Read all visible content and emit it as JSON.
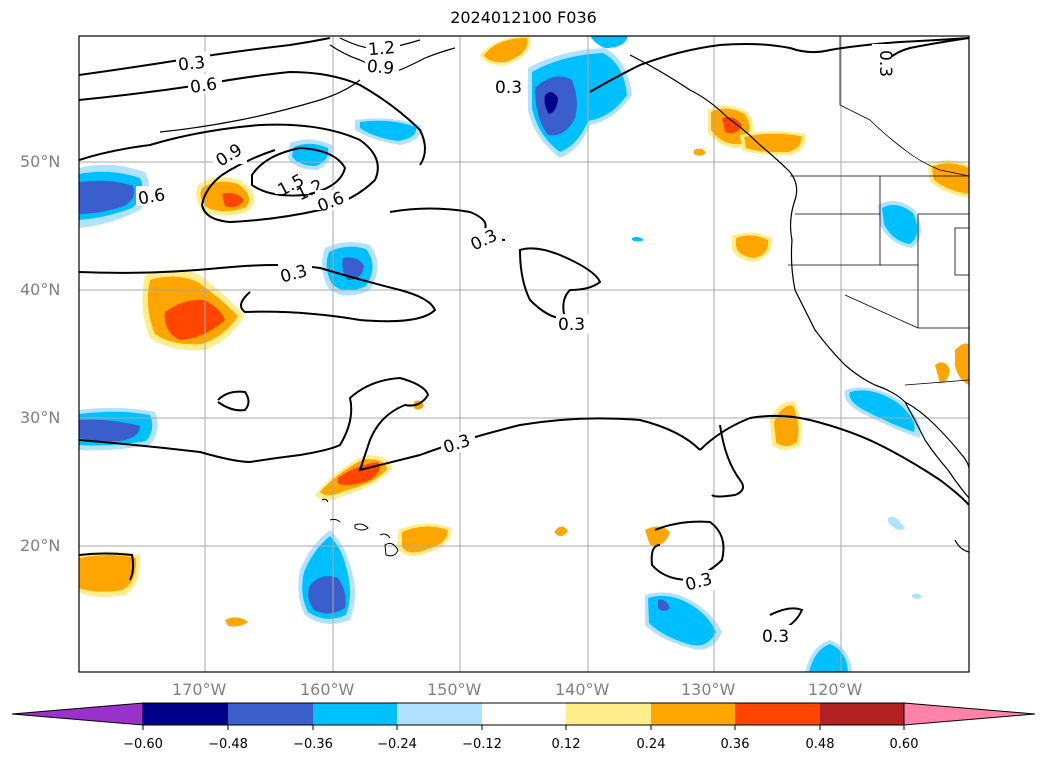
{
  "title": "2024012100 F036",
  "lat_labels": [
    "50°N",
    "40°N",
    "30°N",
    "20°N"
  ],
  "lon_labels": [
    "170°W",
    "160°W",
    "150°W",
    "140°W",
    "130°W",
    "120°W"
  ],
  "contour_labels": {
    "c03a": "0.3",
    "c06a": "0.6",
    "c12a": "1.2",
    "c09a": "0.9",
    "c09b": "0.9",
    "c06b": "0.6",
    "c15": "1.5",
    "c12b": "1.2",
    "c06c": "0.6",
    "c03b": "0.3",
    "c03c": "0.3",
    "c03d": "0.3",
    "c03e": "0.3",
    "c03f": "0.3",
    "c03g": "0.3",
    "c03h": "0.3"
  },
  "colorbar": {
    "ticks": [
      "−0.60",
      "−0.48",
      "−0.36",
      "−0.24",
      "−0.12",
      "0.12",
      "0.24",
      "0.36",
      "0.48",
      "0.60"
    ],
    "colors": [
      "#9932cc",
      "#00008b",
      "#3a5fcd",
      "#00bfff",
      "#b0e2ff",
      "#ffffff",
      "#ffec8b",
      "#ffa500",
      "#ff4500",
      "#b22222",
      "#ff82ab"
    ]
  },
  "colors": {
    "neg_light": "#b0e2ff",
    "neg_mid": "#00bfff",
    "neg_dark": "#3a5fcd",
    "neg_darkest": "#00008b",
    "pos_light": "#ffec8b",
    "pos_mid": "#ffa500",
    "pos_dark": "#ff4500",
    "pos_darkest": "#b22222"
  }
}
